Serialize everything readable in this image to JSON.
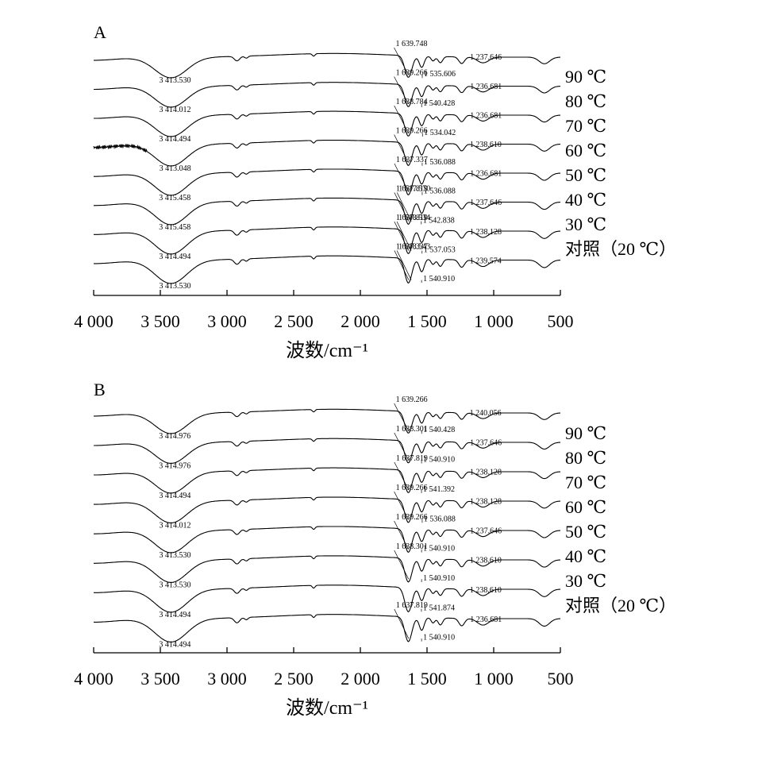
{
  "chart_data": [
    {
      "panel": "A",
      "type": "line",
      "xlabel": "波数/cm⁻¹",
      "xlim": [
        4000,
        500
      ],
      "xreverse": true,
      "xticks": [
        4000,
        3500,
        3000,
        2500,
        2000,
        1500,
        1000,
        500
      ],
      "xtick_labels": [
        "4 000",
        "3 500",
        "3 000",
        "2 500",
        "2 000",
        "1 500",
        "1 000",
        "500"
      ],
      "yaxis": "none",
      "series": [
        {
          "name": "90 ℃",
          "peaks": [
            {
              "x": 3413.53,
              "label": "3 413.530"
            },
            {
              "x": 1639.748,
              "label": "1 639.748"
            },
            {
              "x": 1535.606,
              "label": "1 535.606"
            },
            {
              "x": 1237.646,
              "label": "1 237.646"
            }
          ]
        },
        {
          "name": "80 ℃",
          "peaks": [
            {
              "x": 3414.012,
              "label": "3 414.012"
            },
            {
              "x": 1639.266,
              "label": "1 639.266"
            },
            {
              "x": 1540.428,
              "label": "1 540.428"
            },
            {
              "x": 1236.681,
              "label": "1 236.681"
            }
          ]
        },
        {
          "name": "70 ℃",
          "peaks": [
            {
              "x": 3414.494,
              "label": "3 414.494"
            },
            {
              "x": 1638.784,
              "label": "1 638.784"
            },
            {
              "x": 1534.042,
              "label": "1 534.042"
            },
            {
              "x": 1236.681,
              "label": "1 236.681"
            }
          ]
        },
        {
          "name": "60 ℃",
          "peaks": [
            {
              "x": 3413.048,
              "label": "3 413.048"
            },
            {
              "x": 1639.266,
              "label": "1 639.266"
            },
            {
              "x": 1536.088,
              "label": "1 536.088"
            },
            {
              "x": 1238.61,
              "label": "1 238.610"
            }
          ]
        },
        {
          "name": "50 ℃",
          "peaks": [
            {
              "x": 3415.458,
              "label": "3 415.458"
            },
            {
              "x": 1637.337,
              "label": "1 637.337"
            },
            {
              "x": 1536.088,
              "label": "1 536.088"
            },
            {
              "x": 1236.681,
              "label": "1 236.681"
            }
          ]
        },
        {
          "name": "40 ℃",
          "peaks": [
            {
              "x": 3415.458,
              "label": "3 415.458"
            },
            {
              "x": 1637.819,
              "label": "1 637.819"
            },
            {
              "x": 1617.57,
              "label": "1 617.570"
            },
            {
              "x": 1542.838,
              "label": "1 542.838"
            },
            {
              "x": 1237.646,
              "label": "1 237.646"
            }
          ]
        },
        {
          "name": "30 ℃",
          "peaks": [
            {
              "x": 3414.494,
              "label": "3 414.494"
            },
            {
              "x": 1637.819,
              "label": "1 637.819"
            },
            {
              "x": 1618.534,
              "label": "1 618.534"
            },
            {
              "x": 1537.053,
              "label": "1 537.053"
            },
            {
              "x": 1238.128,
              "label": "1 238.128"
            }
          ]
        },
        {
          "name": "对照（20 ℃）",
          "peaks": [
            {
              "x": 3413.53,
              "label": "3 413.530"
            },
            {
              "x": 1637.337,
              "label": "1 637.337"
            },
            {
              "x": 1618.543,
              "label": "1 618.543"
            },
            {
              "x": 1540.91,
              "label": "1 540.910"
            },
            {
              "x": 1239.574,
              "label": "1 239.574"
            }
          ]
        }
      ]
    },
    {
      "panel": "B",
      "type": "line",
      "xlabel": "波数/cm⁻¹",
      "xlim": [
        4000,
        500
      ],
      "xreverse": true,
      "xticks": [
        4000,
        3500,
        3000,
        2500,
        2000,
        1500,
        1000,
        500
      ],
      "xtick_labels": [
        "4 000",
        "3 500",
        "3 000",
        "2 500",
        "2 000",
        "1 500",
        "1 000",
        "500"
      ],
      "yaxis": "none",
      "series": [
        {
          "name": "90 ℃",
          "peaks": [
            {
              "x": 3414.976,
              "label": "3 414.976"
            },
            {
              "x": 1639.266,
              "label": "1 639.266"
            },
            {
              "x": 1540.428,
              "label": "1 540.428"
            },
            {
              "x": 1240.056,
              "label": "1 240.056"
            }
          ]
        },
        {
          "name": "80 ℃",
          "peaks": [
            {
              "x": 3414.976,
              "label": "3 414.976"
            },
            {
              "x": 1638.301,
              "label": "1 638.301"
            },
            {
              "x": 1540.91,
              "label": "1 540.910"
            },
            {
              "x": 1237.646,
              "label": "1 237.646"
            }
          ]
        },
        {
          "name": "70 ℃",
          "peaks": [
            {
              "x": 3414.494,
              "label": "3 414.494"
            },
            {
              "x": 1637.819,
              "label": "1 637.819"
            },
            {
              "x": 1541.392,
              "label": "1 541.392"
            },
            {
              "x": 1238.128,
              "label": "1 238.128"
            }
          ]
        },
        {
          "name": "60 ℃",
          "peaks": [
            {
              "x": 3414.012,
              "label": "3 414.012"
            },
            {
              "x": 1639.266,
              "label": "1 639.266"
            },
            {
              "x": 1536.088,
              "label": "1 536.088"
            },
            {
              "x": 1238.128,
              "label": "1 238.128"
            }
          ]
        },
        {
          "name": "50 ℃",
          "peaks": [
            {
              "x": 3413.53,
              "label": "3 413.530"
            },
            {
              "x": 1639.266,
              "label": "1 639.266"
            },
            {
              "x": 1540.91,
              "label": "1 540.910"
            },
            {
              "x": 1237.646,
              "label": "1 237.646"
            }
          ]
        },
        {
          "name": "40 ℃",
          "peaks": [
            {
              "x": 3413.53,
              "label": "3 413.530"
            },
            {
              "x": 1638.301,
              "label": "1 638.301"
            },
            {
              "x": 1540.91,
              "label": "1 540.910"
            },
            {
              "x": 1238.61,
              "label": "1 238.610"
            }
          ]
        },
        {
          "name": "30 ℃",
          "peaks": [
            {
              "x": 3414.494,
              "label": "3 414.494"
            },
            {
              "x": 1541.874,
              "label": "1 541.874"
            },
            {
              "x": 1238.61,
              "label": "1 238.610"
            }
          ]
        },
        {
          "name": "对照（20 ℃）",
          "peaks": [
            {
              "x": 3414.494,
              "label": "3 414.494"
            },
            {
              "x": 1637.819,
              "label": "1 637.819"
            },
            {
              "x": 1540.91,
              "label": "1 540.910"
            },
            {
              "x": 1236.681,
              "label": "1 236.681"
            }
          ]
        }
      ]
    }
  ]
}
